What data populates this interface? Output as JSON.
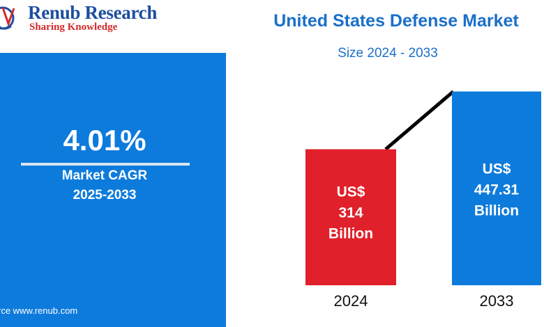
{
  "brand": {
    "name": "Renub Research",
    "tagline": "Sharing Knowledge",
    "primary_color": "#1d4ea0",
    "accent_color": "#d42a2a"
  },
  "title": "United States Defense Market",
  "subtitle": "Size 2024 - 2033",
  "cagr": {
    "value": "4.01%",
    "label": "Market CAGR",
    "period": "2025-2033"
  },
  "source": "rce  www.renub.com",
  "colors": {
    "panel": "#0d7bdc",
    "bar_2024": "#e0202a",
    "bar_2033": "#0d7bdc",
    "trend_line": "#000000"
  },
  "chart_data": {
    "type": "bar",
    "title": "United States Defense Market",
    "subtitle": "Size 2024 - 2033",
    "unit": "US$ Billion",
    "categories": [
      "2024",
      "2033"
    ],
    "values": [
      314,
      447.31
    ],
    "ylim": [
      0,
      530
    ],
    "bar_labels": [
      [
        "US$",
        "314",
        "Billion"
      ],
      [
        "US$",
        "447.31",
        "Billion"
      ]
    ],
    "xlabel": "",
    "ylabel": "",
    "grid": false,
    "trend_line": true
  }
}
